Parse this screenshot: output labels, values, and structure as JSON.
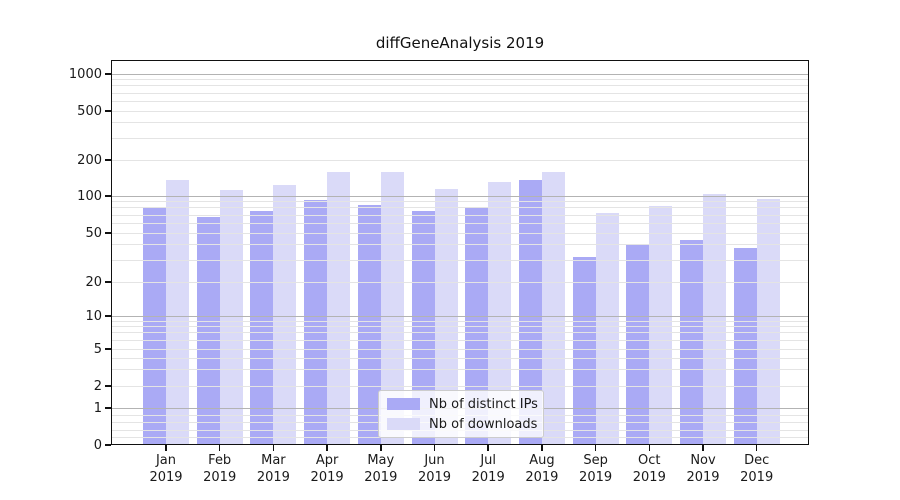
{
  "title": "diffGeneAnalysis 2019",
  "colors": {
    "distinct_ips": "#aaaaf5",
    "downloads": "#dadaf8",
    "major_grid": "#b3b3b3",
    "minor_grid": "#e4e4e4",
    "spine": "#111111",
    "text": "#1a1a1a",
    "legend_border": "#cccccc"
  },
  "legend": {
    "items": [
      {
        "label": "Nb of distinct IPs",
        "series": "distinct_ips"
      },
      {
        "label": "Nb of downloads",
        "series": "downloads"
      }
    ],
    "position": "lower center"
  },
  "x_axis": {
    "months": [
      "Jan",
      "Feb",
      "Mar",
      "Apr",
      "May",
      "Jun",
      "Jul",
      "Aug",
      "Sep",
      "Oct",
      "Nov",
      "Dec"
    ],
    "year": "2019"
  },
  "chart_data": {
    "type": "bar",
    "title": "diffGeneAnalysis 2019",
    "categories": [
      "Jan 2019",
      "Feb 2019",
      "Mar 2019",
      "Apr 2019",
      "May 2019",
      "Jun 2019",
      "Jul 2019",
      "Aug 2019",
      "Sep 2019",
      "Oct 2019",
      "Nov 2019",
      "Dec 2019"
    ],
    "series": [
      {
        "name": "Nb of distinct IPs",
        "values": [
          80,
          68,
          75,
          93,
          85,
          76,
          81,
          135,
          32,
          40,
          44,
          38
        ]
      },
      {
        "name": "Nb of downloads",
        "values": [
          135,
          112,
          124,
          158,
          158,
          114,
          132,
          160,
          73,
          83,
          103,
          94
        ]
      }
    ],
    "y_axis": {
      "scale": "symlog",
      "ticks": [
        0,
        1,
        2,
        5,
        10,
        20,
        50,
        100,
        200,
        500,
        1000
      ],
      "range": [
        0,
        1000
      ]
    },
    "grid": true,
    "legend_position": "lower center"
  }
}
